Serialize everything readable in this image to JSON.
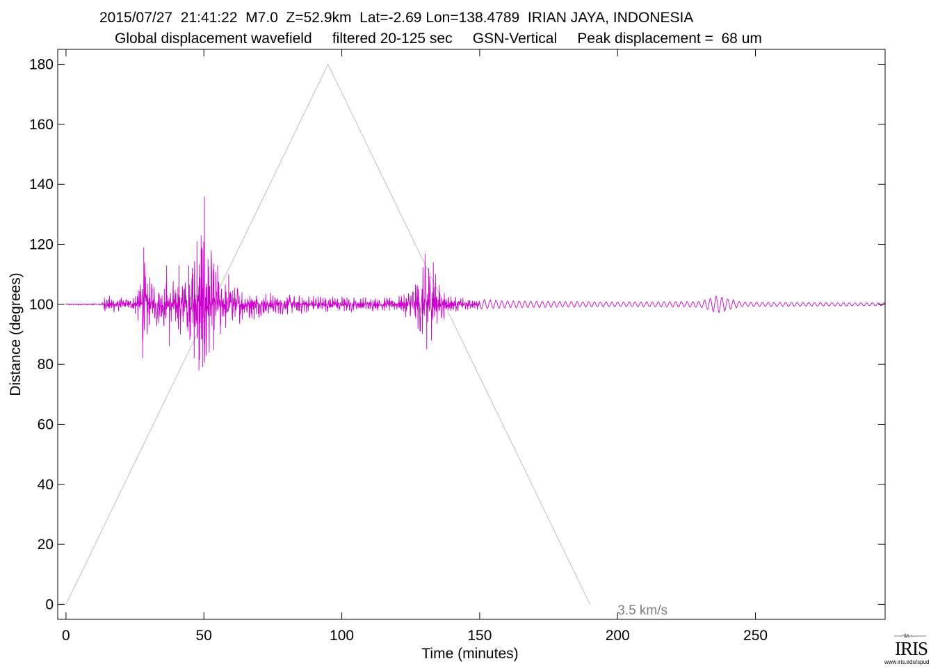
{
  "title": {
    "line1": "2015/07/27  21:41:22  M7.0  Z=52.9km  Lat=-2.69 Lon=138.4789  IRIAN JAYA, INDONESIA",
    "line2": "Global displacement wavefield     filtered 20-125 sec     GSN-Vertical     Peak displacement =  68 um"
  },
  "logo": {
    "name": "IRIS",
    "url": "www.iris.edu/spud"
  },
  "chart_data": {
    "type": "line",
    "xlabel": "Time (minutes)",
    "ylabel": "Distance (degrees)",
    "xlim": [
      -3,
      297
    ],
    "ylim": [
      -5,
      185
    ],
    "xticks": [
      0,
      50,
      100,
      150,
      200,
      250
    ],
    "yticks": [
      0,
      20,
      40,
      60,
      80,
      100,
      120,
      140,
      160,
      180
    ],
    "grid": false,
    "colors": {
      "trace": "#cc00cc",
      "velocity_line": "#bdbdbd",
      "velocity_label": "#808080"
    },
    "annotations": [
      {
        "text": "3.5 km/s",
        "x": 200,
        "y": -2
      }
    ],
    "series": [
      {
        "name": "3.5 km/s",
        "points": [
          [
            0,
            0
          ],
          [
            95,
            180
          ],
          [
            190,
            0
          ]
        ]
      },
      {
        "baseline": 100,
        "x_start": 0,
        "x_end": 300,
        "envelope": [
          [
            0,
            0.2
          ],
          [
            13,
            0.3
          ],
          [
            14,
            3
          ],
          [
            17,
            3
          ],
          [
            20,
            2.5
          ],
          [
            24,
            2
          ],
          [
            27,
            8
          ],
          [
            28,
            18
          ],
          [
            30,
            10
          ],
          [
            35,
            8
          ],
          [
            40,
            9
          ],
          [
            45,
            13
          ],
          [
            47,
            20
          ],
          [
            49,
            25
          ],
          [
            50,
            33
          ],
          [
            52,
            22
          ],
          [
            55,
            10
          ],
          [
            60,
            8
          ],
          [
            65,
            6
          ],
          [
            70,
            5
          ],
          [
            80,
            3.5
          ],
          [
            95,
            3
          ],
          [
            110,
            2.5
          ],
          [
            120,
            2.5
          ],
          [
            125,
            6
          ],
          [
            128,
            10
          ],
          [
            130,
            16
          ],
          [
            133,
            10
          ],
          [
            137,
            5
          ],
          [
            141,
            3
          ],
          [
            145,
            2
          ],
          [
            160,
            1.2
          ],
          [
            200,
            0.8
          ],
          [
            230,
            1.0
          ],
          [
            236,
            3
          ],
          [
            240,
            2
          ],
          [
            245,
            0.8
          ],
          [
            260,
            0.7
          ],
          [
            300,
            0.5
          ]
        ],
        "spikes": [
          [
            28.2,
            19
          ],
          [
            27.8,
            -18
          ],
          [
            29.5,
            -10
          ],
          [
            36.5,
            13
          ],
          [
            37.5,
            -14
          ],
          [
            41,
            13
          ],
          [
            41.5,
            -10
          ],
          [
            44.5,
            13
          ],
          [
            46,
            10
          ],
          [
            46.5,
            -18
          ],
          [
            47.5,
            21
          ],
          [
            48.2,
            -22
          ],
          [
            49,
            23
          ],
          [
            49.6,
            -21
          ],
          [
            50.2,
            36
          ],
          [
            50.8,
            -17
          ],
          [
            51.5,
            15
          ],
          [
            55,
            13
          ],
          [
            56,
            -10
          ],
          [
            59,
            10
          ],
          [
            130.2,
            17
          ],
          [
            130.8,
            -15
          ],
          [
            131.5,
            12
          ],
          [
            132.5,
            -12
          ],
          [
            133.2,
            14
          ],
          [
            134,
            10
          ]
        ]
      }
    ]
  }
}
